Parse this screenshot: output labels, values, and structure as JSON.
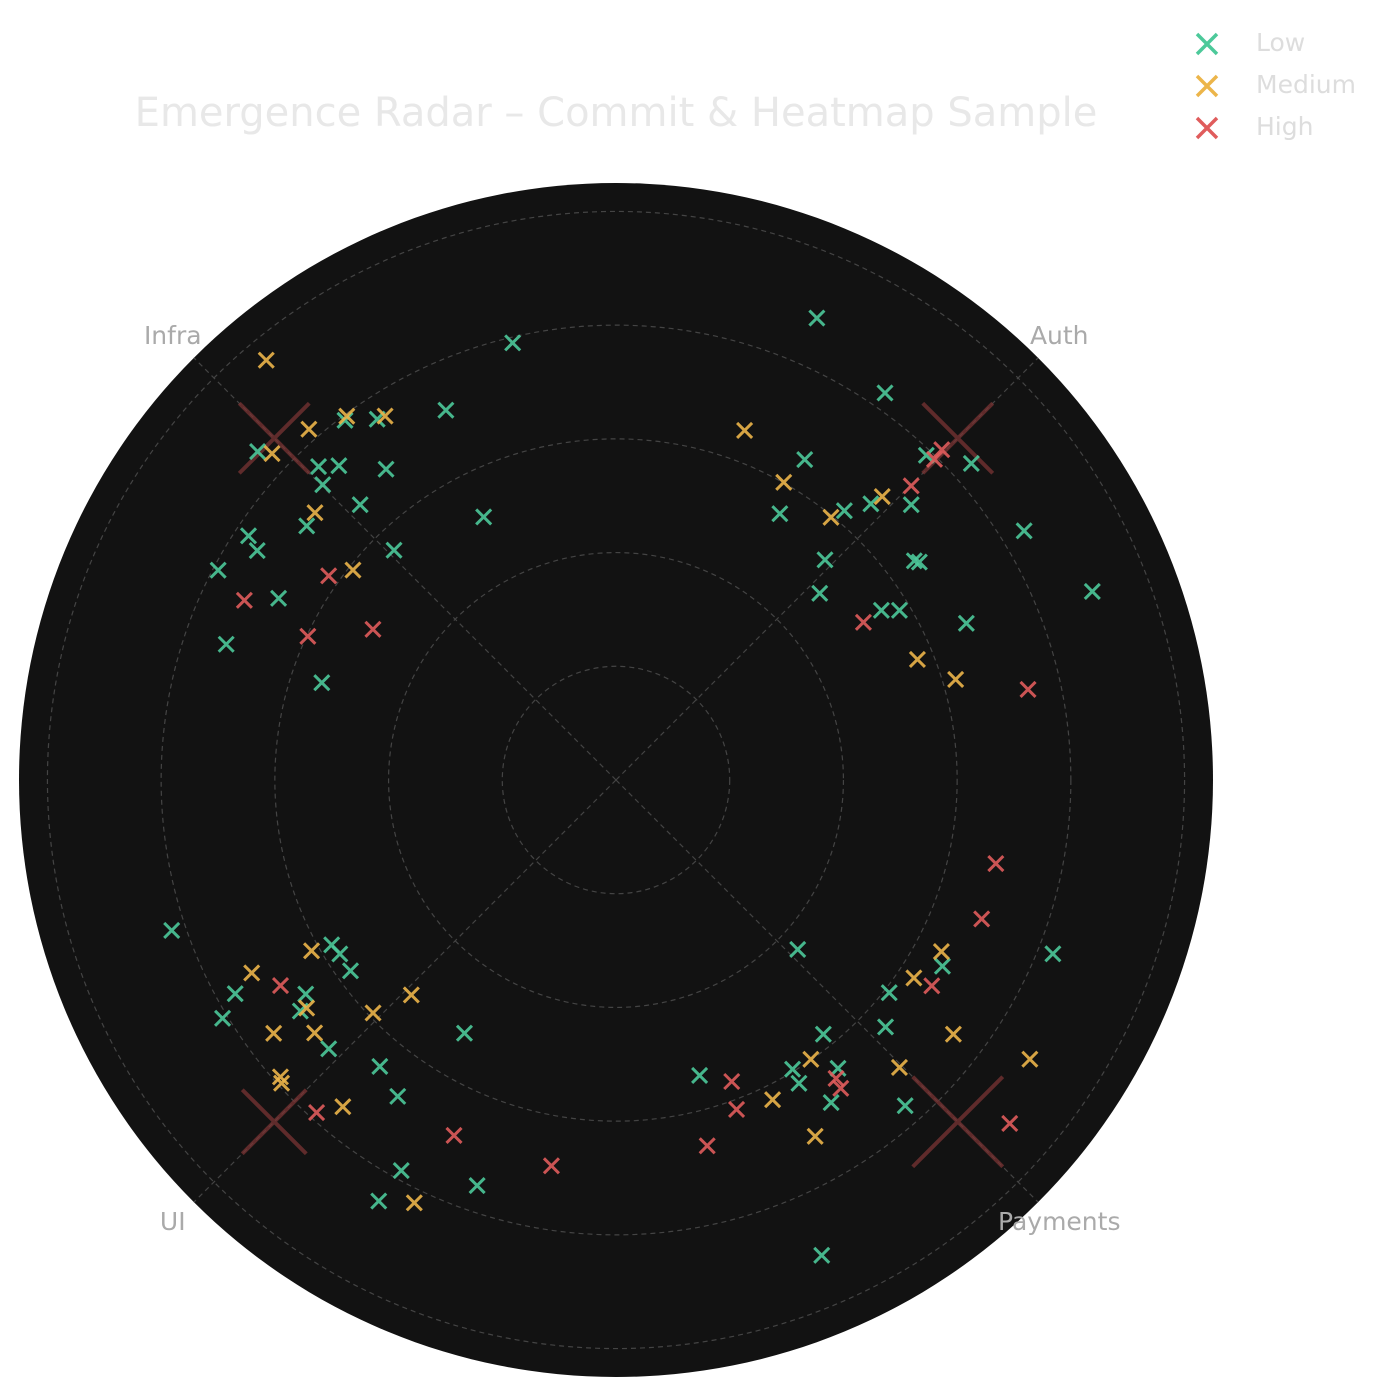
{
  "chart_data": {
    "type": "polar-scatter",
    "title": "Emergence Radar – Commit & Heatmap Sample",
    "categories": [
      "Auth",
      "Infra",
      "UI",
      "Payments"
    ],
    "theta_ticks": [
      45,
      135,
      225,
      315
    ],
    "rlim": [
      0,
      1.05
    ],
    "rticks": [
      0.2,
      0.4,
      0.6,
      0.8,
      1.0
    ],
    "grid": true,
    "legend": "upper right",
    "series": [
      {
        "name": "Low",
        "color": "#4cc99a",
        "theta": [
          66.5,
          55.2,
          21.6,
          31.4,
          41.7,
          46.3,
          43.0,
          47.3,
          49.7,
          59.5,
          58.4,
          46.5,
          36.3,
          35.7,
          32.6,
          30.9,
          42.5,
          24.1,
          103.3,
          114.7,
          127.0,
          123.5,
          137.5,
          133.5,
          131.4,
          126.5,
          134.8,
          132.9,
          116.7,
          140.6,
          146.4,
          147.4,
          134.0,
          152.2,
          151.7,
          160.8,
          161.7,
          198.7,
          210.1,
          212.2,
          215.7,
          209.3,
          214.6,
          216.2,
          211.2,
          239.1,
          223.1,
          230.5,
          235.4,
          241.2,
          251.1,
          240.6,
          317.0,
          338.3,
          330.3,
          322.1,
          317.5,
          309.2,
          307.6,
          301.4,
          285.8,
          301.1,
          303.7,
          311.6,
          293.4
        ],
        "r": [
          0.886,
          0.829,
          0.901,
          0.841,
          0.837,
          0.79,
          0.71,
          0.661,
          0.621,
          0.654,
          0.55,
          0.534,
          0.651,
          0.657,
          0.554,
          0.581,
          0.486,
          0.675,
          0.79,
          0.716,
          0.792,
          0.761,
          0.855,
          0.76,
          0.737,
          0.68,
          0.732,
          0.661,
          0.518,
          0.704,
          0.776,
          0.749,
          0.562,
          0.791,
          0.674,
          0.726,
          0.545,
          0.825,
          0.578,
          0.574,
          0.575,
          0.768,
          0.663,
          0.688,
          0.809,
          0.519,
          0.692,
          0.653,
          0.676,
          0.784,
          0.754,
          0.85,
          0.437,
          0.827,
          0.661,
          0.609,
          0.643,
          0.577,
          0.64,
          0.596,
          0.54,
          0.623,
          0.682,
          0.766,
          0.911
        ]
      },
      {
        "name": "Medium",
        "color": "#ecb54a",
        "theta": [
          69.8,
          60.6,
          46.8,
          50.7,
          21.8,
          16.5,
          129.8,
          131.2,
          136.5,
          126.5,
          122.4,
          138.4,
          141.4,
          209.3,
          207.9,
          226.4,
          216.4,
          223.8,
          216.5,
          220.0,
          221.5,
          222.2,
          230.1,
          244.5,
          332.2,
          326.4,
          323.0,
          326.0,
          304.9,
          314.6,
          296.1,
          299.2
        ],
        "r": [
          0.655,
          0.601,
          0.684,
          0.597,
          0.571,
          0.623,
          0.961,
          0.82,
          0.834,
          0.796,
          0.758,
          0.708,
          0.592,
          0.614,
          0.725,
          0.522,
          0.676,
          0.592,
          0.749,
          0.692,
          0.788,
          0.794,
          0.749,
          0.824,
          0.647,
          0.629,
          0.743,
          0.878,
          0.599,
          0.71,
          0.626,
          0.718
        ]
      },
      {
        "name": "High",
        "color": "#e05c5c",
        "theta": [
          45.4,
          45.2,
          44.9,
          32.5,
          12.4,
          154.2,
          144.6,
          148.2,
          155.0,
          211.5,
          228.0,
          245.5,
          260.5,
          347.6,
          339.2,
          326.9,
          291.0,
          306.4,
          306.1,
          290.1,
          284.0,
          318.9
        ],
        "r": [
          0.816,
          0.795,
          0.733,
          0.516,
          0.742,
          0.726,
          0.62,
          0.503,
          0.598,
          0.692,
          0.787,
          0.687,
          0.688,
          0.684,
          0.688,
          0.663,
          0.568,
          0.652,
          0.671,
          0.617,
          0.663,
          0.919
        ]
      }
    ],
    "hotspots": {
      "color": "#7a3434",
      "theta": [
        45,
        135,
        225,
        315
      ],
      "r": [
        0.85,
        0.85,
        0.85,
        0.85
      ],
      "size": [
        35,
        35,
        32,
        45
      ]
    }
  }
}
